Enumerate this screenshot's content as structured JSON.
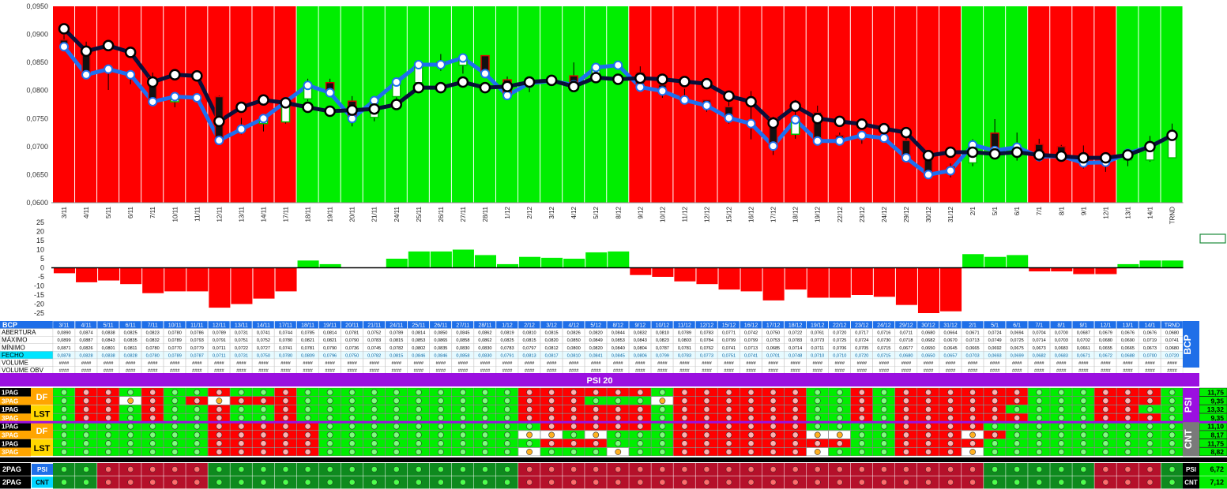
{
  "dates": [
    "3/11",
    "4/11",
    "5/11",
    "6/11",
    "7/11",
    "10/11",
    "11/11",
    "12/11",
    "13/11",
    "14/11",
    "17/11",
    "18/11",
    "19/11",
    "20/11",
    "21/11",
    "24/11",
    "25/11",
    "26/11",
    "27/11",
    "28/11",
    "1/12",
    "2/12",
    "3/12",
    "4/12",
    "5/12",
    "8/12",
    "9/12",
    "10/12",
    "11/12",
    "12/12",
    "15/12",
    "16/12",
    "17/12",
    "18/12",
    "19/12",
    "22/12",
    "23/12",
    "24/12",
    "29/12",
    "30/12",
    "31/12",
    "2/1",
    "5/1",
    "6/1",
    "7/1",
    "8/1",
    "9/1",
    "12/1",
    "13/1",
    "14/1",
    "TRND"
  ],
  "bg_colors": [
    "R",
    "R",
    "R",
    "R",
    "R",
    "R",
    "R",
    "R",
    "R",
    "R",
    "R",
    "G",
    "G",
    "G",
    "G",
    "G",
    "G",
    "G",
    "G",
    "G",
    "G",
    "G",
    "G",
    "G",
    "G",
    "G",
    "R",
    "R",
    "R",
    "R",
    "R",
    "R",
    "R",
    "R",
    "R",
    "R",
    "R",
    "R",
    "R",
    "R",
    "R",
    "G",
    "G",
    "G",
    "R",
    "R",
    "R",
    "R",
    "G",
    "G",
    "G"
  ],
  "colors": {
    "red": "#ff0000",
    "green": "#00ee00",
    "dark_navy": "#0a0f3a",
    "blue": "#1e6ff0",
    "purple": "#9b10e0",
    "bcp_blue": "#1f6fe8",
    "dark_red": "#b5102a",
    "dark_green": "#0e8a1e"
  },
  "chart_data": [
    {
      "type": "line",
      "categories_ref": "dates",
      "ylim": [
        0.06,
        0.095
      ],
      "yticks": [
        "0,0950",
        "0,0900",
        "0,0850",
        "0,0800",
        "0,0750",
        "0,0700",
        "0,0650",
        "0,0600"
      ],
      "series": [
        {
          "values": [
            0.091,
            0.087,
            0.088,
            0.0868,
            0.0815,
            0.0828,
            0.0826,
            0.0745,
            0.077,
            0.0783,
            0.0778,
            0.077,
            0.0763,
            0.0765,
            0.0767,
            0.0775,
            0.0805,
            0.0805,
            0.0815,
            0.0805,
            0.0807,
            0.0815,
            0.0818,
            0.0807,
            0.0823,
            0.082,
            0.0822,
            0.082,
            0.0816,
            0.0812,
            0.079,
            0.078,
            0.0742,
            0.0772,
            0.075,
            0.0745,
            0.074,
            0.0732,
            0.0725,
            0.0684,
            0.069,
            0.069,
            0.0687,
            0.069,
            0.0685,
            0.0683,
            0.068,
            0.068,
            0.0685,
            0.07,
            0.072
          ]
        },
        {
          "values": [
            0.0878,
            0.0828,
            0.0838,
            0.0828,
            0.078,
            0.0789,
            0.0787,
            0.0711,
            0.0731,
            0.075,
            0.078,
            0.0809,
            0.0796,
            0.075,
            0.0782,
            0.0815,
            0.0846,
            0.0846,
            0.0858,
            0.083,
            0.0791,
            0.0813,
            0.0817,
            0.081,
            0.0841,
            0.0845,
            0.0806,
            0.0799,
            0.0783,
            0.0773,
            0.0751,
            0.0741,
            0.0701,
            0.0748,
            0.071,
            0.071,
            0.072,
            0.0715,
            0.068,
            0.065,
            0.0657,
            0.0703,
            0.0693,
            0.0699,
            0.0682,
            0.0683,
            0.0671,
            0.0672,
            0.0688,
            0.07,
            0.072
          ]
        }
      ],
      "candles": {
        "open": [
          0.089,
          0.0874,
          0.0838,
          0.0825,
          0.0823,
          0.078,
          0.0786,
          0.0789,
          0.0731,
          0.0741,
          0.0744,
          0.0785,
          0.0814,
          0.0781,
          0.0752,
          0.0789,
          0.0814,
          0.085,
          0.0845,
          0.0862,
          0.0819,
          0.081,
          0.0815,
          0.0826,
          0.082,
          0.0844,
          0.0832,
          0.081,
          0.0789,
          0.0783,
          0.0771,
          0.0742,
          0.075,
          0.0722,
          0.0761,
          0.072,
          0.0717,
          0.0716,
          0.0711,
          0.068,
          0.0664,
          0.0671,
          0.0724,
          0.0694,
          0.0704,
          0.07,
          0.0687,
          0.0679,
          0.0676,
          0.0676,
          0.068
        ],
        "high": [
          0.0899,
          0.0887,
          0.0843,
          0.0835,
          0.0832,
          0.0789,
          0.0793,
          0.0791,
          0.0751,
          0.0752,
          0.078,
          0.0821,
          0.0821,
          0.079,
          0.0783,
          0.0815,
          0.0853,
          0.0865,
          0.0858,
          0.0862,
          0.0825,
          0.0815,
          0.082,
          0.085,
          0.0849,
          0.0853,
          0.0843,
          0.0823,
          0.0803,
          0.0784,
          0.0799,
          0.0799,
          0.0753,
          0.0783,
          0.0773,
          0.0725,
          0.0724,
          0.073,
          0.0718,
          0.0682,
          0.067,
          0.0713,
          0.0749,
          0.0725,
          0.0714,
          0.0703,
          0.0702,
          0.068,
          0.069,
          0.0719,
          0.0741
        ],
        "low": [
          0.0871,
          0.0826,
          0.0801,
          0.0811,
          0.078,
          0.077,
          0.0779,
          0.0711,
          0.0722,
          0.0727,
          0.0741,
          0.0781,
          0.079,
          0.0736,
          0.0745,
          0.0782,
          0.0802,
          0.0835,
          0.083,
          0.083,
          0.0783,
          0.0797,
          0.0812,
          0.08,
          0.082,
          0.084,
          0.0804,
          0.0787,
          0.0781,
          0.0762,
          0.0741,
          0.0713,
          0.0685,
          0.0714,
          0.0711,
          0.0706,
          0.0705,
          0.0715,
          0.0677,
          0.065,
          0.0645,
          0.0665,
          0.0692,
          0.0675,
          0.0673,
          0.0683,
          0.0661,
          0.0655,
          0.0665,
          0.0673,
          0.068
        ],
        "close": [
          0.0878,
          0.0828,
          0.0838,
          0.0828,
          0.078,
          0.0789,
          0.0787,
          0.0711,
          0.0731,
          0.075,
          0.078,
          0.0809,
          0.0796,
          0.075,
          0.0782,
          0.0815,
          0.0846,
          0.0846,
          0.0858,
          0.083,
          0.0791,
          0.0813,
          0.0817,
          0.081,
          0.0841,
          0.0845,
          0.0806,
          0.0799,
          0.0783,
          0.0773,
          0.0751,
          0.0741,
          0.0701,
          0.0748,
          0.071,
          0.071,
          0.072,
          0.0715,
          0.068,
          0.065,
          0.0657,
          0.0703,
          0.0693,
          0.0699,
          0.0682,
          0.0683,
          0.0671,
          0.0672,
          0.0688,
          0.07,
          0.072
        ]
      }
    },
    {
      "type": "bar",
      "categories_ref": "dates",
      "ylim": [
        -25,
        25
      ],
      "yticks": [
        "25",
        "20",
        "15",
        "10",
        "5",
        "0",
        "-5",
        "-10",
        "-15",
        "-20",
        "-25"
      ],
      "values": [
        -3,
        -8,
        -7,
        -9,
        -14,
        -13,
        -13,
        -22,
        -20,
        -17,
        -13,
        4,
        2,
        0,
        0,
        5,
        9,
        9,
        10,
        7,
        2,
        6,
        5.5,
        5,
        8.5,
        9,
        -4,
        -5,
        -7.5,
        -9,
        -12,
        -13,
        -18,
        -12,
        -16.5,
        -16.5,
        -15,
        -16,
        -20.5,
        -25,
        -24,
        7.5,
        6,
        7,
        -2,
        -2,
        -3.5,
        -3.5,
        2,
        4,
        4
      ]
    }
  ],
  "table": {
    "label": "BCP",
    "side_label": "BCP",
    "rows": [
      {
        "name": "ABERTURA",
        "values": [
          "0,0890",
          "0,0874",
          "0,0838",
          "0,0825",
          "0,0823",
          "0,0780",
          "0,0786",
          "0,0789",
          "0,0731",
          "0,0741",
          "0,0744",
          "0,0785",
          "0,0814",
          "0,0781",
          "0,0752",
          "0,0789",
          "0,0814",
          "0,0850",
          "0,0845",
          "0,0862",
          "0,0819",
          "0,0810",
          "0,0815",
          "0,0826",
          "0,0820",
          "0,0844",
          "0,0832",
          "0,0810",
          "0,0789",
          "0,0783",
          "0,0771",
          "0,0742",
          "0,0750",
          "0,0722",
          "0,0761",
          "0,0720",
          "0,0717",
          "0,0716",
          "0,0711",
          "0,0680",
          "0,0664",
          "0,0671",
          "0,0724",
          "0,0694",
          "0,0704",
          "0,0700",
          "0,0687",
          "0,0679",
          "0,0676",
          "0,0676",
          "0,0680"
        ]
      },
      {
        "name": "MÁXIMO",
        "values": [
          "0,0899",
          "0,0887",
          "0,0843",
          "0,0835",
          "0,0832",
          "0,0789",
          "0,0793",
          "0,0791",
          "0,0751",
          "0,0752",
          "0,0780",
          "0,0821",
          "0,0821",
          "0,0790",
          "0,0783",
          "0,0815",
          "0,0853",
          "0,0865",
          "0,0858",
          "0,0862",
          "0,0825",
          "0,0815",
          "0,0820",
          "0,0850",
          "0,0849",
          "0,0853",
          "0,0843",
          "0,0823",
          "0,0803",
          "0,0784",
          "0,0799",
          "0,0799",
          "0,0753",
          "0,0783",
          "0,0773",
          "0,0725",
          "0,0724",
          "0,0730",
          "0,0718",
          "0,0682",
          "0,0670",
          "0,0713",
          "0,0749",
          "0,0725",
          "0,0714",
          "0,0703",
          "0,0702",
          "0,0680",
          "0,0690",
          "0,0719",
          "0,0741"
        ]
      },
      {
        "name": "MÍNIMO",
        "values": [
          "0,0871",
          "0,0826",
          "0,0801",
          "0,0811",
          "0,0780",
          "0,0770",
          "0,0779",
          "0,0711",
          "0,0722",
          "0,0727",
          "0,0741",
          "0,0781",
          "0,0790",
          "0,0736",
          "0,0745",
          "0,0782",
          "0,0802",
          "0,0835",
          "0,0830",
          "0,0830",
          "0,0783",
          "0,0797",
          "0,0812",
          "0,0800",
          "0,0820",
          "0,0840",
          "0,0804",
          "0,0787",
          "0,0781",
          "0,0762",
          "0,0741",
          "0,0713",
          "0,0685",
          "0,0714",
          "0,0711",
          "0,0706",
          "0,0705",
          "0,0715",
          "0,0677",
          "0,0650",
          "0,0645",
          "0,0665",
          "0,0692",
          "0,0675",
          "0,0673",
          "0,0683",
          "0,0661",
          "0,0655",
          "0,0665",
          "0,0673",
          "0,0680"
        ]
      },
      {
        "name": "FECHO",
        "values": [
          "0,0878",
          "0,0828",
          "0,0838",
          "0,0828",
          "0,0780",
          "0,0789",
          "0,0787",
          "0,0711",
          "0,0731",
          "0,0750",
          "0,0780",
          "0,0809",
          "0,0796",
          "0,0750",
          "0,0782",
          "0,0815",
          "0,0846",
          "0,0846",
          "0,0858",
          "0,0830",
          "0,0791",
          "0,0813",
          "0,0817",
          "0,0810",
          "0,0841",
          "0,0845",
          "0,0806",
          "0,0799",
          "0,0783",
          "0,0773",
          "0,0751",
          "0,0741",
          "0,0701",
          "0,0748",
          "0,0710",
          "0,0710",
          "0,0720",
          "0,0715",
          "0,0680",
          "0,0650",
          "0,0657",
          "0,0703",
          "0,0693",
          "0,0699",
          "0,0682",
          "0,0683",
          "0,0671",
          "0,0672",
          "0,0688",
          "0,0700",
          "0,0720"
        ]
      },
      {
        "name": "VOLUME",
        "values": []
      },
      {
        "name": "VOLUME OBV",
        "values": []
      }
    ],
    "hash": "####"
  },
  "psi20_title": "PSI 20",
  "signals": {
    "row_labels": [
      "1PAG",
      "3PAG",
      "1PAG",
      "3PAG",
      "1PAG",
      "3PAG",
      "1PAG",
      "3PAG"
    ],
    "group_labels": [
      "DF",
      "LST",
      "DF",
      "LST"
    ],
    "side_labels": [
      "PSI",
      "CNT"
    ],
    "right_values": [
      "11,75",
      "9,35",
      "13,32",
      "9,35",
      "11,10",
      "8,17",
      "11,75",
      "8,82"
    ],
    "rows": [
      "GRRGRGGRGGRGGGGGGGGGGRRRRRRGRRRRRRGGRGRRRRRRGGGRRRGGG",
      "GRRORGRORRRGGGGGGGGGGRRRGGGORRRRRRGGRGRRRRRRGGGRRRGGG",
      "GRRGRGGRGGRGGGGGGGGGGRRRRRRGRRRRRRGGRGRRRRRGGGGRRGGGG",
      "GRRGRGGRGGRGGGGGGGGGGRRRRRRGRRRRRRGGRGRRRRRRGGGRRRGGG",
      "GGGGGGGRRRRRGGGGGGGGGGRRRRRGRRRRRRGGGGRRRRGGGGGGGGGGG",
      "GGGGGGGRRRRRGGGGGGGGGOOGOGGGRRRRRROOGGRRRORGGGGGGGGGG",
      "GGGGGGGRRRRRGGGGGGGGGGRRRGGGRRRRRRRRGGRRRRGGGGGGGGGGG",
      "GGGGGGGRRRRRGGGGGGGGGOGGGOGGRRRRRROGGGRRROGGGGGGGGGGG"
    ],
    "summary": [
      {
        "label": "2PAG",
        "tag": "PSI",
        "value": "6,72",
        "row": "GGRRRRRGGGGGGGGGGGGGGRRRRRRRRRRRRRRRRRRRRRGGGGGRRRGGG"
      },
      {
        "label": "2PAG",
        "tag": "CNT",
        "value": "7,12",
        "row": "GGRRRRRGGGGGGGGGGGGGGRRRRRRRRRRRRRRRRRRRRRGGGGGRRRGGG"
      }
    ]
  }
}
